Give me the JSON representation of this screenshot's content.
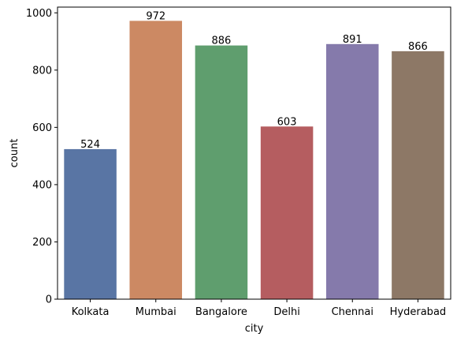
{
  "chart_data": {
    "type": "bar",
    "categories": [
      "Kolkata",
      "Mumbai",
      "Bangalore",
      "Delhi",
      "Chennai",
      "Hyderabad"
    ],
    "values": [
      524,
      972,
      886,
      603,
      891,
      866
    ],
    "data_labels": [
      "524",
      "972",
      "886",
      "603",
      "891",
      "866"
    ],
    "colors": [
      "#5975a4",
      "#cc8963",
      "#5f9e6e",
      "#b55d60",
      "#857aab",
      "#8d7866"
    ],
    "xlabel": "city",
    "ylabel": "count",
    "ylim": [
      0,
      1020
    ],
    "yticks": [
      0,
      200,
      400,
      600,
      800,
      1000
    ],
    "ytick_labels": [
      "0",
      "200",
      "400",
      "600",
      "800",
      "1000"
    ],
    "grid": false,
    "legend": false
  }
}
